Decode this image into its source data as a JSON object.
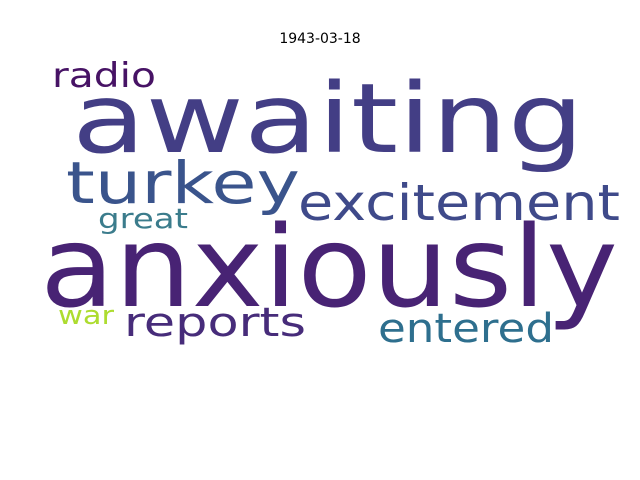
{
  "title": "1943-03-18",
  "words": [
    {
      "id": "awaiting",
      "text": "awaiting",
      "color": "#433e85"
    },
    {
      "id": "anxiously",
      "text": "anxiously",
      "color": "#482374"
    },
    {
      "id": "turkey",
      "text": "turkey",
      "color": "#3a548c"
    },
    {
      "id": "excitement",
      "text": "excitement",
      "color": "#3f4a8a"
    },
    {
      "id": "radio",
      "text": "radio",
      "color": "#471365"
    },
    {
      "id": "reports",
      "text": "reports",
      "color": "#472c7a"
    },
    {
      "id": "entered",
      "text": "entered",
      "color": "#2e6f8e"
    },
    {
      "id": "great",
      "text": "great",
      "color": "#3b7c8c"
    },
    {
      "id": "war",
      "text": "war",
      "color": "#addc30"
    }
  ]
}
